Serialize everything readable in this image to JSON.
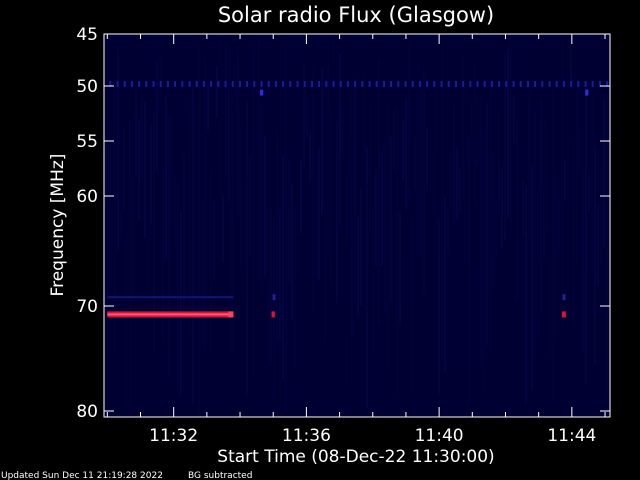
{
  "chart_data": {
    "type": "heatmap",
    "title": "Solar radio Flux (Glasgow)",
    "xlabel": "Start Time (08-Dec-22 11:30:00)",
    "ylabel": "Frequency [MHz]",
    "x_unit": "minutes after 11:30:00",
    "xlim": [
      -0.1,
      15.15
    ],
    "x_ticks": [
      {
        "label": "11:32",
        "value": 2
      },
      {
        "label": "11:36",
        "value": 6
      },
      {
        "label": "11:40",
        "value": 10
      },
      {
        "label": "11:44",
        "value": 14
      }
    ],
    "y_ticks": [
      "45",
      "50",
      "55",
      "60",
      "70",
      "80"
    ],
    "y_tick_positions": [
      0,
      1,
      2,
      3,
      4,
      5
    ],
    "background_color": "#000033",
    "features": [
      {
        "name": "dotted line",
        "freq_pos": 0.96,
        "x_from": 0.0,
        "x_to": 15.1,
        "color": "#1a1aa0",
        "kind": "dots"
      },
      {
        "name": "blip",
        "freq_pos": 1.12,
        "x_from": 4.6,
        "x_to": 4.7,
        "color": "#2a2ae0",
        "kind": "block"
      },
      {
        "name": "blip",
        "freq_pos": 1.12,
        "x_from": 14.4,
        "x_to": 14.5,
        "color": "#2a2ae0",
        "kind": "block"
      },
      {
        "name": "band",
        "freq_pos": 3.92,
        "x_from": 0.0,
        "x_to": 3.8,
        "color": "#141470",
        "kind": "line"
      },
      {
        "name": "band",
        "freq_pos": 4.08,
        "x_from": 0.0,
        "x_to": 3.8,
        "color": "#e0103c",
        "kind": "thick"
      },
      {
        "name": "band",
        "freq_pos": 4.08,
        "x_from": 3.65,
        "x_to": 3.8,
        "color": "#ff4060",
        "kind": "block"
      },
      {
        "name": "blip",
        "freq_pos": 4.08,
        "x_from": 4.95,
        "x_to": 5.05,
        "color": "#e0103c",
        "kind": "block"
      },
      {
        "name": "blip",
        "freq_pos": 4.08,
        "x_from": 13.7,
        "x_to": 13.82,
        "color": "#e0103c",
        "kind": "block"
      },
      {
        "name": "blip",
        "freq_pos": 3.92,
        "x_from": 4.98,
        "x_to": 5.04,
        "color": "#202090",
        "kind": "block"
      },
      {
        "name": "blip",
        "freq_pos": 3.92,
        "x_from": 13.72,
        "x_to": 13.8,
        "color": "#202090",
        "kind": "block"
      }
    ],
    "grid": false,
    "legend": "none"
  },
  "footer": {
    "updated": "Updated Sun Dec 11 21:19:28 2022",
    "bg_note": "BG subtracted"
  }
}
